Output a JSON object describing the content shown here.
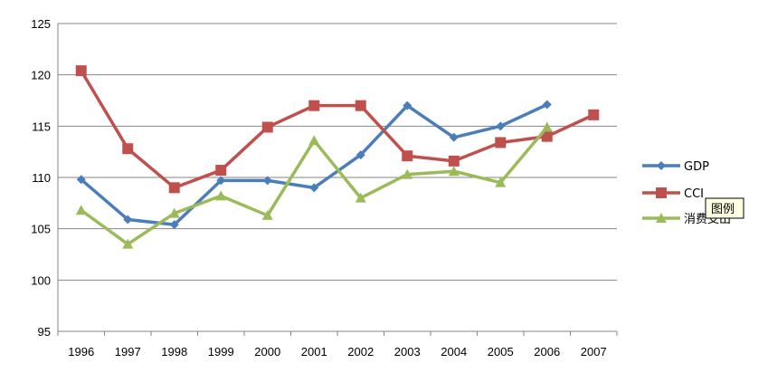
{
  "chart_data": {
    "type": "line",
    "title": "",
    "xlabel": "",
    "ylabel": "",
    "categories": [
      "1996",
      "1997",
      "1998",
      "1999",
      "2000",
      "2001",
      "2002",
      "2003",
      "2004",
      "2005",
      "2006",
      "2007"
    ],
    "ylim": [
      95,
      125
    ],
    "y_ticks": [
      95,
      100,
      105,
      110,
      115,
      120,
      125
    ],
    "grid": "horizontal",
    "legend_position": "right",
    "series": [
      {
        "name": "GDP",
        "color": "#4a7ebb",
        "marker": "diamond",
        "values": [
          109.8,
          105.9,
          105.4,
          109.7,
          109.7,
          109.0,
          112.2,
          117.0,
          113.9,
          115.0,
          117.1,
          null
        ]
      },
      {
        "name": "CCI",
        "color": "#c0504d",
        "marker": "square",
        "values": [
          120.4,
          112.8,
          109.0,
          110.7,
          114.9,
          117.0,
          117.0,
          112.1,
          111.6,
          113.4,
          114.0,
          116.1
        ]
      },
      {
        "name": "消费支出",
        "color": "#9bbb59",
        "marker": "triangle",
        "values": [
          106.8,
          103.5,
          106.5,
          108.2,
          106.3,
          113.6,
          108.0,
          110.3,
          110.6,
          109.5,
          114.9,
          null
        ]
      }
    ]
  },
  "tooltip": {
    "text": "图例"
  }
}
